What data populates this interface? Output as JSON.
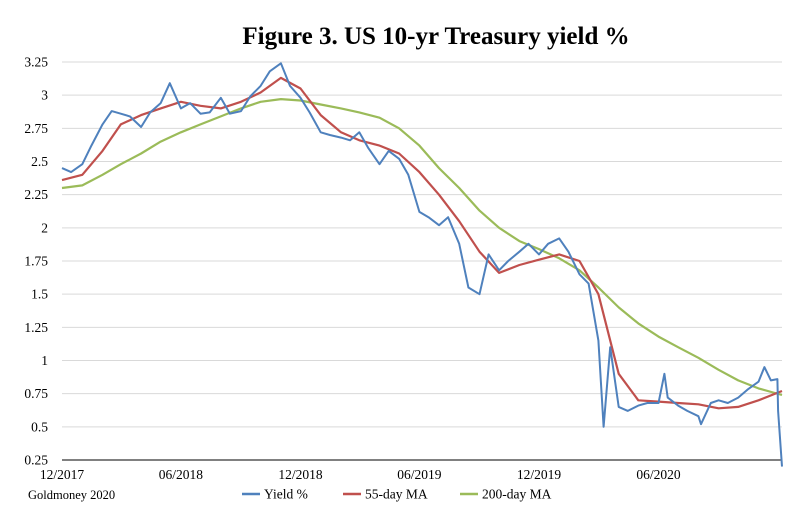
{
  "chart_data": {
    "type": "line",
    "title": "Figure 3. US 10-yr Treasury yield %",
    "source": "Goldmoney 2020",
    "xlabel": "",
    "ylabel": "",
    "x_ticks": [
      "12/2017",
      "06/2018",
      "12/2018",
      "06/2019",
      "12/2019",
      "06/2020"
    ],
    "y_ticks": [
      "3.25",
      "3",
      "2.75",
      "2.5",
      "2.25",
      "2",
      "1.75",
      "1.5",
      "1.25",
      "1",
      "0.75",
      "0.5",
      "0.25"
    ],
    "xlim": [
      "2017-12-01",
      "2020-12-07"
    ],
    "ylim": [
      0.25,
      3.25
    ],
    "grid": "horizontal",
    "legend_position": "bottom",
    "colors": {
      "yield": "#4f81bd",
      "ma55": "#c0504d",
      "ma200": "#9bbb59",
      "grid": "#d9d9d9"
    },
    "series": [
      {
        "name": "Yield %",
        "x": [
          "2017-12-01",
          "2017-12-15",
          "2018-01-01",
          "2018-01-15",
          "2018-02-01",
          "2018-02-15",
          "2018-03-01",
          "2018-03-15",
          "2018-04-01",
          "2018-04-15",
          "2018-05-01",
          "2018-05-15",
          "2018-06-01",
          "2018-06-15",
          "2018-07-01",
          "2018-07-15",
          "2018-08-01",
          "2018-08-15",
          "2018-09-01",
          "2018-09-15",
          "2018-10-01",
          "2018-10-15",
          "2018-11-01",
          "2018-11-15",
          "2018-12-01",
          "2018-12-15",
          "2019-01-01",
          "2019-01-15",
          "2019-02-01",
          "2019-02-15",
          "2019-03-01",
          "2019-03-15",
          "2019-04-01",
          "2019-04-15",
          "2019-05-01",
          "2019-05-15",
          "2019-06-01",
          "2019-06-15",
          "2019-07-01",
          "2019-07-15",
          "2019-08-01",
          "2019-08-15",
          "2019-09-01",
          "2019-09-15",
          "2019-10-01",
          "2019-10-15",
          "2019-11-01",
          "2019-11-15",
          "2019-12-01",
          "2019-12-15",
          "2020-01-01",
          "2020-01-15",
          "2020-02-01",
          "2020-02-15",
          "2020-03-01",
          "2020-03-09",
          "2020-03-19",
          "2020-04-01",
          "2020-04-15",
          "2020-05-01",
          "2020-05-15",
          "2020-06-01",
          "2020-06-10",
          "2020-06-15",
          "2020-07-01",
          "2020-07-15",
          "2020-08-01",
          "2020-08-05",
          "2020-08-20",
          "2020-09-01",
          "2020-09-15",
          "2020-10-01",
          "2020-10-15",
          "2020-11-01",
          "2020-11-10",
          "2020-11-20",
          "2020-11-30",
          "2020-12-01",
          "2020-12-07"
        ],
        "values": [
          2.45,
          2.42,
          2.48,
          2.62,
          2.78,
          2.88,
          2.86,
          2.84,
          2.76,
          2.87,
          2.94,
          3.09,
          2.9,
          2.94,
          2.86,
          2.87,
          2.98,
          2.86,
          2.88,
          2.99,
          3.07,
          3.18,
          3.24,
          3.07,
          2.98,
          2.87,
          2.72,
          2.7,
          2.68,
          2.66,
          2.72,
          2.6,
          2.48,
          2.58,
          2.52,
          2.4,
          2.12,
          2.08,
          2.02,
          2.08,
          1.88,
          1.55,
          1.5,
          1.8,
          1.68,
          1.75,
          1.82,
          1.88,
          1.8,
          1.88,
          1.92,
          1.82,
          1.65,
          1.58,
          1.15,
          0.5,
          1.1,
          0.65,
          0.62,
          0.66,
          0.68,
          0.68,
          0.9,
          0.72,
          0.66,
          0.62,
          0.58,
          0.52,
          0.68,
          0.7,
          0.68,
          0.72,
          0.78,
          0.84,
          0.95,
          0.85,
          0.86,
          0.62,
          0.2
        ]
      },
      {
        "name": "55-day MA",
        "x": [
          "2017-12-01",
          "2018-01-01",
          "2018-02-01",
          "2018-03-01",
          "2018-04-01",
          "2018-05-01",
          "2018-06-01",
          "2018-07-01",
          "2018-08-01",
          "2018-09-01",
          "2018-10-01",
          "2018-11-01",
          "2018-12-01",
          "2019-01-01",
          "2019-02-01",
          "2019-03-01",
          "2019-04-01",
          "2019-05-01",
          "2019-06-01",
          "2019-07-01",
          "2019-08-01",
          "2019-09-01",
          "2019-10-01",
          "2019-11-01",
          "2019-12-01",
          "2020-01-01",
          "2020-02-01",
          "2020-03-01",
          "2020-04-01",
          "2020-05-01",
          "2020-06-01",
          "2020-07-01",
          "2020-08-01",
          "2020-09-01",
          "2020-10-01",
          "2020-11-01",
          "2020-12-07"
        ],
        "values": [
          2.36,
          2.4,
          2.58,
          2.78,
          2.85,
          2.9,
          2.95,
          2.92,
          2.9,
          2.95,
          3.02,
          3.13,
          3.05,
          2.85,
          2.72,
          2.66,
          2.62,
          2.56,
          2.42,
          2.25,
          2.05,
          1.82,
          1.66,
          1.72,
          1.76,
          1.8,
          1.75,
          1.5,
          0.9,
          0.7,
          0.69,
          0.68,
          0.67,
          0.64,
          0.65,
          0.7,
          0.77
        ]
      },
      {
        "name": "200-day MA",
        "x": [
          "2017-12-01",
          "2018-01-01",
          "2018-02-01",
          "2018-03-01",
          "2018-04-01",
          "2018-05-01",
          "2018-06-01",
          "2018-07-01",
          "2018-08-01",
          "2018-09-01",
          "2018-10-01",
          "2018-11-01",
          "2018-12-01",
          "2019-01-01",
          "2019-02-01",
          "2019-03-01",
          "2019-04-01",
          "2019-05-01",
          "2019-06-01",
          "2019-07-01",
          "2019-08-01",
          "2019-09-01",
          "2019-10-01",
          "2019-11-01",
          "2019-12-01",
          "2020-01-01",
          "2020-02-01",
          "2020-03-01",
          "2020-04-01",
          "2020-05-01",
          "2020-06-01",
          "2020-07-01",
          "2020-08-01",
          "2020-09-01",
          "2020-10-01",
          "2020-11-01",
          "2020-12-07"
        ],
        "values": [
          2.3,
          2.32,
          2.4,
          2.48,
          2.56,
          2.65,
          2.72,
          2.78,
          2.84,
          2.9,
          2.95,
          2.97,
          2.96,
          2.93,
          2.9,
          2.87,
          2.83,
          2.75,
          2.62,
          2.45,
          2.3,
          2.13,
          2.0,
          1.9,
          1.84,
          1.77,
          1.68,
          1.55,
          1.4,
          1.28,
          1.18,
          1.1,
          1.02,
          0.93,
          0.85,
          0.79,
          0.74
        ]
      }
    ]
  }
}
